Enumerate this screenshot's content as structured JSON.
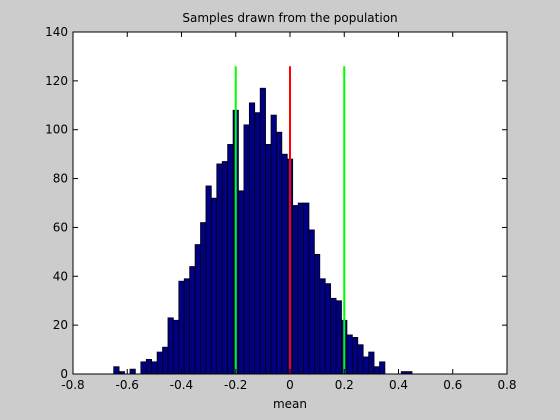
{
  "chart_data": {
    "type": "bar",
    "title": "Samples drawn from the population",
    "xlabel": "mean",
    "ylabel": "",
    "xlim": [
      -0.8,
      0.8
    ],
    "ylim": [
      0,
      140
    ],
    "xticks": [
      -0.8,
      -0.6,
      -0.4,
      -0.2,
      0,
      0.2,
      0.4,
      0.6,
      0.8
    ],
    "xtick_labels": [
      "-0.8",
      "-0.6",
      "-0.4",
      "-0.2",
      "0",
      "0.2",
      "0.4",
      "0.6",
      "0.8"
    ],
    "yticks": [
      0,
      20,
      40,
      60,
      80,
      100,
      120,
      140
    ],
    "ytick_labels": [
      "0",
      "20",
      "40",
      "60",
      "80",
      "100",
      "120",
      "140"
    ],
    "grid": false,
    "bin_width": 0.02,
    "bins": [
      {
        "x0": -0.65,
        "count": 3
      },
      {
        "x0": -0.63,
        "count": 1
      },
      {
        "x0": -0.61,
        "count": 0
      },
      {
        "x0": -0.59,
        "count": 2
      },
      {
        "x0": -0.57,
        "count": 0
      },
      {
        "x0": -0.55,
        "count": 5
      },
      {
        "x0": -0.53,
        "count": 6
      },
      {
        "x0": -0.51,
        "count": 5
      },
      {
        "x0": -0.49,
        "count": 9
      },
      {
        "x0": -0.47,
        "count": 11
      },
      {
        "x0": -0.45,
        "count": 23
      },
      {
        "x0": -0.43,
        "count": 22
      },
      {
        "x0": -0.41,
        "count": 38
      },
      {
        "x0": -0.39,
        "count": 39
      },
      {
        "x0": -0.37,
        "count": 44
      },
      {
        "x0": -0.35,
        "count": 53
      },
      {
        "x0": -0.33,
        "count": 62
      },
      {
        "x0": -0.31,
        "count": 77
      },
      {
        "x0": -0.29,
        "count": 72
      },
      {
        "x0": -0.27,
        "count": 86
      },
      {
        "x0": -0.25,
        "count": 87
      },
      {
        "x0": -0.23,
        "count": 94
      },
      {
        "x0": -0.21,
        "count": 108
      },
      {
        "x0": -0.19,
        "count": 75
      },
      {
        "x0": -0.17,
        "count": 102
      },
      {
        "x0": -0.15,
        "count": 111
      },
      {
        "x0": -0.13,
        "count": 107
      },
      {
        "x0": -0.11,
        "count": 117
      },
      {
        "x0": -0.09,
        "count": 94
      },
      {
        "x0": -0.07,
        "count": 106
      },
      {
        "x0": -0.05,
        "count": 99
      },
      {
        "x0": -0.03,
        "count": 90
      },
      {
        "x0": -0.01,
        "count": 88
      },
      {
        "x0": 0.01,
        "count": 69
      },
      {
        "x0": 0.03,
        "count": 70
      },
      {
        "x0": 0.05,
        "count": 70
      },
      {
        "x0": 0.07,
        "count": 59
      },
      {
        "x0": 0.09,
        "count": 49
      },
      {
        "x0": 0.11,
        "count": 39
      },
      {
        "x0": 0.13,
        "count": 37
      },
      {
        "x0": 0.15,
        "count": 31
      },
      {
        "x0": 0.17,
        "count": 30
      },
      {
        "x0": 0.19,
        "count": 22
      },
      {
        "x0": 0.21,
        "count": 16
      },
      {
        "x0": 0.23,
        "count": 15
      },
      {
        "x0": 0.25,
        "count": 12
      },
      {
        "x0": 0.27,
        "count": 7
      },
      {
        "x0": 0.29,
        "count": 9
      },
      {
        "x0": 0.31,
        "count": 3
      },
      {
        "x0": 0.33,
        "count": 5
      },
      {
        "x0": 0.35,
        "count": 0
      },
      {
        "x0": 0.37,
        "count": 0
      },
      {
        "x0": 0.39,
        "count": 0
      },
      {
        "x0": 0.41,
        "count": 1
      },
      {
        "x0": 0.43,
        "count": 1
      },
      {
        "x0": 0.45,
        "count": 0
      },
      {
        "x0": 0.47,
        "count": 0
      },
      {
        "x0": 0.49,
        "count": 0
      }
    ],
    "vertical_lines": [
      {
        "x": -0.2,
        "y_top": 126,
        "color": "#00ff00"
      },
      {
        "x": 0,
        "y_top": 126,
        "color": "#ff0000"
      },
      {
        "x": 0.2,
        "y_top": 126,
        "color": "#00ff00"
      }
    ],
    "colors": {
      "bar_fill": "#000080",
      "bar_edge": "#000000",
      "figure_background": "#cccccc",
      "axes_background": "#ffffff"
    }
  }
}
